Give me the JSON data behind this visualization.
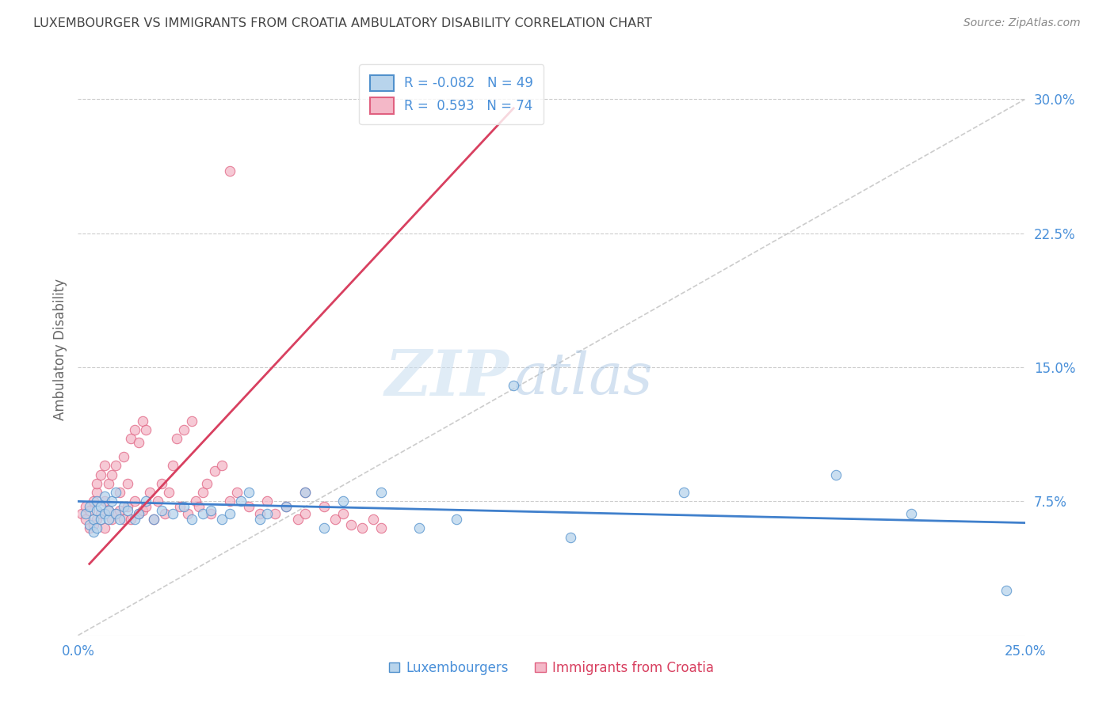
{
  "title": "LUXEMBOURGER VS IMMIGRANTS FROM CROATIA AMBULATORY DISABILITY CORRELATION CHART",
  "source": "Source: ZipAtlas.com",
  "ylabel": "Ambulatory Disability",
  "xlim": [
    0.0,
    0.25
  ],
  "ylim": [
    0.0,
    0.32
  ],
  "yticks": [
    0.075,
    0.15,
    0.225,
    0.3
  ],
  "ytick_labels": [
    "7.5%",
    "15.0%",
    "22.5%",
    "30.0%"
  ],
  "xticks": [
    0.0,
    0.25
  ],
  "xtick_labels": [
    "0.0%",
    "25.0%"
  ],
  "watermark_zip": "ZIP",
  "watermark_atlas": "atlas",
  "blue_R": -0.082,
  "blue_N": 49,
  "pink_R": 0.593,
  "pink_N": 74,
  "blue_fill_color": "#b8d4ec",
  "pink_fill_color": "#f4b8c8",
  "blue_edge_color": "#5090cc",
  "pink_edge_color": "#e06080",
  "blue_line_color": "#4080cc",
  "pink_line_color": "#d84060",
  "grid_color": "#cccccc",
  "title_color": "#444444",
  "axis_label_color": "#4a90d9",
  "background_color": "#ffffff",
  "blue_scatter_x": [
    0.002,
    0.003,
    0.003,
    0.004,
    0.004,
    0.005,
    0.005,
    0.005,
    0.006,
    0.006,
    0.007,
    0.007,
    0.008,
    0.008,
    0.009,
    0.01,
    0.01,
    0.011,
    0.012,
    0.013,
    0.015,
    0.016,
    0.018,
    0.02,
    0.022,
    0.025,
    0.028,
    0.03,
    0.033,
    0.035,
    0.038,
    0.04,
    0.043,
    0.045,
    0.048,
    0.05,
    0.055,
    0.06,
    0.065,
    0.07,
    0.08,
    0.09,
    0.1,
    0.115,
    0.13,
    0.16,
    0.2,
    0.22,
    0.245
  ],
  "blue_scatter_y": [
    0.068,
    0.072,
    0.062,
    0.058,
    0.065,
    0.07,
    0.075,
    0.06,
    0.065,
    0.072,
    0.068,
    0.078,
    0.065,
    0.07,
    0.075,
    0.068,
    0.08,
    0.065,
    0.072,
    0.07,
    0.065,
    0.068,
    0.075,
    0.065,
    0.07,
    0.068,
    0.072,
    0.065,
    0.068,
    0.07,
    0.065,
    0.068,
    0.075,
    0.08,
    0.065,
    0.068,
    0.072,
    0.08,
    0.06,
    0.075,
    0.08,
    0.06,
    0.065,
    0.14,
    0.055,
    0.08,
    0.09,
    0.068,
    0.025
  ],
  "pink_scatter_x": [
    0.001,
    0.002,
    0.002,
    0.003,
    0.003,
    0.004,
    0.004,
    0.005,
    0.005,
    0.005,
    0.006,
    0.006,
    0.007,
    0.007,
    0.007,
    0.008,
    0.008,
    0.009,
    0.009,
    0.01,
    0.01,
    0.011,
    0.011,
    0.012,
    0.012,
    0.013,
    0.013,
    0.014,
    0.014,
    0.015,
    0.015,
    0.016,
    0.016,
    0.017,
    0.017,
    0.018,
    0.018,
    0.019,
    0.02,
    0.021,
    0.022,
    0.023,
    0.024,
    0.025,
    0.026,
    0.027,
    0.028,
    0.029,
    0.03,
    0.031,
    0.032,
    0.033,
    0.034,
    0.035,
    0.036,
    0.038,
    0.04,
    0.042,
    0.045,
    0.048,
    0.05,
    0.052,
    0.055,
    0.058,
    0.06,
    0.065,
    0.068,
    0.07,
    0.072,
    0.075,
    0.078,
    0.08,
    0.04,
    0.06
  ],
  "pink_scatter_y": [
    0.068,
    0.072,
    0.065,
    0.07,
    0.06,
    0.075,
    0.062,
    0.08,
    0.085,
    0.065,
    0.09,
    0.068,
    0.095,
    0.075,
    0.06,
    0.085,
    0.07,
    0.09,
    0.065,
    0.068,
    0.095,
    0.08,
    0.07,
    0.1,
    0.065,
    0.085,
    0.072,
    0.11,
    0.065,
    0.115,
    0.075,
    0.108,
    0.068,
    0.12,
    0.07,
    0.115,
    0.072,
    0.08,
    0.065,
    0.075,
    0.085,
    0.068,
    0.08,
    0.095,
    0.11,
    0.072,
    0.115,
    0.068,
    0.12,
    0.075,
    0.072,
    0.08,
    0.085,
    0.068,
    0.092,
    0.095,
    0.075,
    0.08,
    0.072,
    0.068,
    0.075,
    0.068,
    0.072,
    0.065,
    0.068,
    0.072,
    0.065,
    0.068,
    0.062,
    0.06,
    0.065,
    0.06,
    0.26,
    0.08
  ],
  "blue_line_x": [
    0.0,
    0.25
  ],
  "blue_line_y": [
    0.075,
    0.063
  ],
  "pink_line_x": [
    0.003,
    0.115
  ],
  "pink_line_y": [
    0.04,
    0.295
  ]
}
